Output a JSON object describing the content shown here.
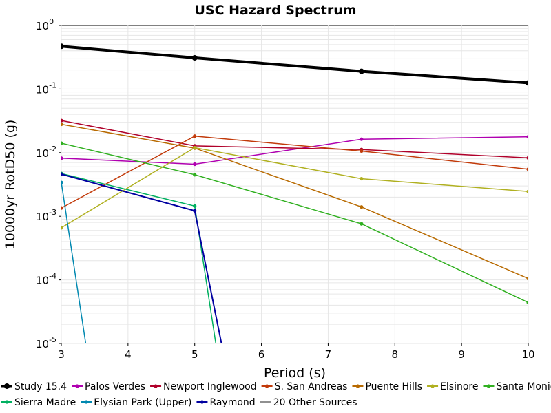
{
  "chart_data": {
    "type": "line",
    "title": "USC Hazard Spectrum",
    "xlabel": "Period (s)",
    "ylabel": "10000yr RotD50 (g)",
    "xlim": [
      3,
      10
    ],
    "ylim": [
      1e-05,
      1
    ],
    "yscale": "log",
    "grid": true,
    "legend_position": "bottom",
    "x_ticks": [
      "3",
      "4",
      "5",
      "6",
      "7",
      "8",
      "9",
      "10"
    ],
    "y_ticks": [
      {
        "base": "10",
        "exp": "0"
      },
      {
        "base": "10",
        "exp": "-1"
      },
      {
        "base": "10",
        "exp": "-2"
      },
      {
        "base": "10",
        "exp": "-3"
      },
      {
        "base": "10",
        "exp": "-4"
      },
      {
        "base": "10",
        "exp": "-5"
      }
    ],
    "series": [
      {
        "name": "Study 15.4",
        "color": "#000000",
        "width": 4,
        "x": [
          3,
          5,
          7.5,
          10
        ],
        "y": [
          0.47,
          0.31,
          0.19,
          0.125
        ]
      },
      {
        "name": "Palos Verdes",
        "color": "#b000b0",
        "width": 1.5,
        "x": [
          3,
          5,
          7.5,
          10
        ],
        "y": [
          0.0082,
          0.0066,
          0.0163,
          0.0178
        ]
      },
      {
        "name": "Newport Inglewood",
        "color": "#b0002a",
        "width": 1.5,
        "x": [
          3,
          5,
          7.5,
          10
        ],
        "y": [
          0.032,
          0.0128,
          0.0112,
          0.0083
        ]
      },
      {
        "name": "S. San Andreas",
        "color": "#c23a0a",
        "width": 1.5,
        "x": [
          3,
          5,
          7.5,
          10
        ],
        "y": [
          0.00135,
          0.0182,
          0.0106,
          0.0055
        ]
      },
      {
        "name": "Puente Hills",
        "color": "#b86a00",
        "width": 1.5,
        "x": [
          3,
          5,
          7.5,
          10
        ],
        "y": [
          0.028,
          0.0118,
          0.0014,
          0.000105
        ]
      },
      {
        "name": "Elsinore",
        "color": "#b0b020",
        "width": 1.5,
        "x": [
          3,
          5,
          7.5,
          10
        ],
        "y": [
          0.00066,
          0.012,
          0.0039,
          0.00245
        ]
      },
      {
        "name": "Santa Monica",
        "color": "#30b020",
        "width": 1.5,
        "x": [
          3,
          5,
          7.5,
          10
        ],
        "y": [
          0.0141,
          0.0045,
          0.00076,
          4.4e-05
        ]
      },
      {
        "name": "Sierra Madre",
        "color": "#00b060",
        "width": 1.5,
        "x": [
          3,
          5,
          5.33
        ],
        "y": [
          0.0047,
          0.00145,
          8e-06
        ]
      },
      {
        "name": "Elysian Park (Upper)",
        "color": "#0088b0",
        "width": 1.5,
        "x": [
          3,
          3.38
        ],
        "y": [
          0.0034,
          8e-06
        ]
      },
      {
        "name": "Raymond",
        "color": "#0000a0",
        "width": 2,
        "x": [
          3,
          5,
          5.42
        ],
        "y": [
          0.0046,
          0.00122,
          8e-06
        ]
      },
      {
        "name": "20 Other Sources",
        "color": "#909090",
        "width": 2,
        "x": [],
        "y": []
      }
    ]
  }
}
